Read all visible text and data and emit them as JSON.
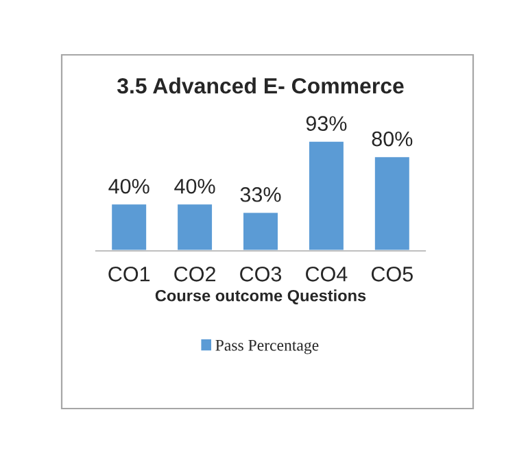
{
  "chart_data": {
    "type": "bar",
    "title": "3.5 Advanced E- Commerce",
    "xlabel": "Course outcome Questions",
    "categories": [
      "CO1",
      "CO2",
      "CO3",
      "CO4",
      "CO5"
    ],
    "series": [
      {
        "name": "Pass Percentage",
        "color": "#5b9bd5",
        "values": [
          40,
          40,
          33,
          93,
          80
        ],
        "value_labels": [
          "40%",
          "40%",
          "33%",
          "93%",
          "80%"
        ]
      }
    ],
    "legend": "bottom",
    "grid": false
  }
}
